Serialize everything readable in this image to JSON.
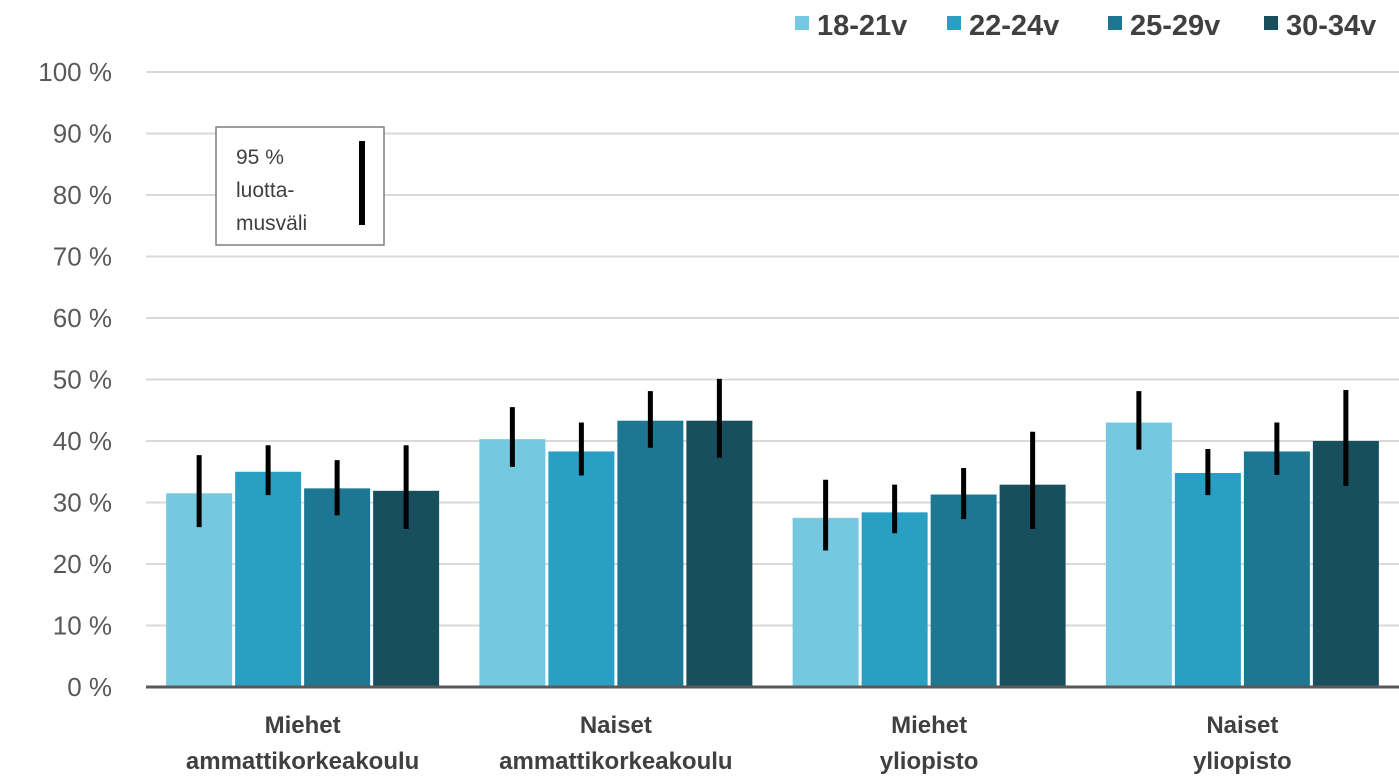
{
  "chart_data": {
    "type": "bar",
    "ylim": [
      0,
      100
    ],
    "yticks": [
      0,
      10,
      20,
      30,
      40,
      50,
      60,
      70,
      80,
      90,
      100
    ],
    "ytick_suffix": " %",
    "grid": true,
    "legend_position": "top-right",
    "categories": [
      [
        "Miehet",
        "ammattikorkeakoulu"
      ],
      [
        "Naiset",
        "ammattikorkeakoulu"
      ],
      [
        "Miehet",
        "yliopisto"
      ],
      [
        "Naiset",
        "yliopisto"
      ]
    ],
    "series": [
      {
        "name": "18-21v",
        "color": "#74C9E1",
        "values": [
          31.5,
          40.3,
          27.5,
          43.0
        ],
        "ci_low": [
          26.0,
          35.8,
          22.2,
          38.6
        ],
        "ci_high": [
          37.7,
          45.5,
          33.7,
          48.1
        ]
      },
      {
        "name": "22-24v",
        "color": "#299FC3",
        "values": [
          35.0,
          38.3,
          28.4,
          34.8
        ],
        "ci_low": [
          31.2,
          34.4,
          25.0,
          31.2
        ],
        "ci_high": [
          39.3,
          43.0,
          32.9,
          38.7
        ]
      },
      {
        "name": "25-29v",
        "color": "#1D7793",
        "values": [
          32.3,
          43.3,
          31.3,
          38.3
        ],
        "ci_low": [
          27.9,
          38.9,
          27.3,
          34.5
        ],
        "ci_high": [
          36.9,
          48.1,
          35.6,
          43.0
        ]
      },
      {
        "name": "30-34v",
        "color": "#174F5F",
        "values": [
          31.9,
          43.3,
          32.9,
          40.0
        ],
        "ci_low": [
          25.7,
          37.3,
          25.7,
          32.7
        ],
        "ci_high": [
          39.3,
          50.1,
          41.5,
          48.3
        ]
      }
    ],
    "ci_legend": {
      "lines": [
        "95 %",
        "luotta-",
        "musväli"
      ]
    }
  }
}
